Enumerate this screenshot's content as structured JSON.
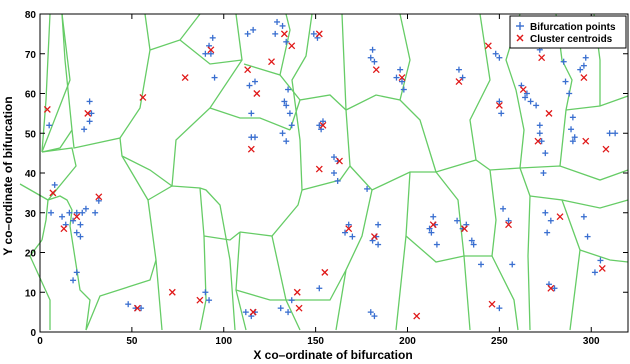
{
  "chart_data": {
    "type": "scatter",
    "title": "",
    "xlabel": "X co–ordinate of bifurcation",
    "ylabel": "Y co–ordinate of bifurcation",
    "xlim": [
      0,
      320
    ],
    "ylim": [
      0,
      80
    ],
    "xticks": [
      0,
      50,
      100,
      150,
      200,
      250,
      300
    ],
    "yticks": [
      0,
      10,
      20,
      30,
      40,
      50,
      60,
      70,
      80
    ],
    "grid": false,
    "legend": {
      "position": "top-right",
      "entries": [
        "Bifurcation points",
        "Cluster centroids"
      ]
    },
    "colors": {
      "points": "#3a6fd0",
      "centroids": "#e01818",
      "voronoi": "#66cc66",
      "axes": "#000000"
    },
    "series": [
      {
        "name": "Bifurcation points",
        "marker": "plus",
        "points": [
          [
            6,
            30
          ],
          [
            8,
            37
          ],
          [
            5,
            52
          ],
          [
            12,
            29
          ],
          [
            14,
            27
          ],
          [
            16,
            30
          ],
          [
            18,
            28
          ],
          [
            20,
            30
          ],
          [
            20,
            25
          ],
          [
            22,
            27
          ],
          [
            23,
            30
          ],
          [
            22,
            24
          ],
          [
            25,
            31
          ],
          [
            27,
            58
          ],
          [
            27,
            53
          ],
          [
            24,
            51
          ],
          [
            28,
            55
          ],
          [
            32,
            33
          ],
          [
            30,
            30
          ],
          [
            20,
            15
          ],
          [
            18,
            13
          ],
          [
            48,
            7
          ],
          [
            55,
            6
          ],
          [
            52,
            6
          ],
          [
            90,
            70
          ],
          [
            92,
            72
          ],
          [
            94,
            74
          ],
          [
            95,
            64
          ],
          [
            93,
            70
          ],
          [
            90,
            10
          ],
          [
            92,
            8
          ],
          [
            113,
            75
          ],
          [
            116,
            76
          ],
          [
            117,
            63
          ],
          [
            114,
            62
          ],
          [
            115,
            55
          ],
          [
            115,
            49
          ],
          [
            117,
            49
          ],
          [
            112,
            5
          ],
          [
            115,
            4
          ],
          [
            117,
            5
          ],
          [
            128,
            75
          ],
          [
            129,
            78
          ],
          [
            132,
            77
          ],
          [
            134,
            73
          ],
          [
            135,
            61
          ],
          [
            133,
            58
          ],
          [
            134,
            57
          ],
          [
            136,
            55
          ],
          [
            137,
            52
          ],
          [
            132,
            50
          ],
          [
            134,
            48
          ],
          [
            131,
            6
          ],
          [
            135,
            5
          ],
          [
            137,
            8
          ],
          [
            149,
            75
          ],
          [
            151,
            74
          ],
          [
            152,
            52
          ],
          [
            154,
            53
          ],
          [
            153,
            51
          ],
          [
            152,
            11
          ],
          [
            160,
            44
          ],
          [
            162,
            43
          ],
          [
            160,
            40
          ],
          [
            162,
            38
          ],
          [
            166,
            25
          ],
          [
            168,
            27
          ],
          [
            170,
            24
          ],
          [
            180,
            69
          ],
          [
            181,
            71
          ],
          [
            182,
            68
          ],
          [
            178,
            36
          ],
          [
            184,
            27
          ],
          [
            183,
            24
          ],
          [
            181,
            23
          ],
          [
            184,
            22
          ],
          [
            180,
            5
          ],
          [
            182,
            4
          ],
          [
            194,
            64
          ],
          [
            196,
            66
          ],
          [
            197,
            63
          ],
          [
            198,
            61
          ],
          [
            212,
            26
          ],
          [
            214,
            29
          ],
          [
            215,
            27
          ],
          [
            213,
            25
          ],
          [
            216,
            22
          ],
          [
            228,
            66
          ],
          [
            230,
            64
          ],
          [
            227,
            28
          ],
          [
            230,
            26
          ],
          [
            232,
            27
          ],
          [
            235,
            23
          ],
          [
            236,
            22
          ],
          [
            240,
            17
          ],
          [
            248,
            70
          ],
          [
            250,
            69
          ],
          [
            250,
            58
          ],
          [
            251,
            55
          ],
          [
            252,
            31
          ],
          [
            255,
            28
          ],
          [
            257,
            17
          ],
          [
            250,
            6
          ],
          [
            262,
            62
          ],
          [
            264,
            59
          ],
          [
            265,
            60
          ],
          [
            267,
            58
          ],
          [
            272,
            71
          ],
          [
            273,
            72
          ],
          [
            270,
            57
          ],
          [
            272,
            52
          ],
          [
            272,
            50
          ],
          [
            273,
            48
          ],
          [
            275,
            45
          ],
          [
            274,
            40
          ],
          [
            275,
            30
          ],
          [
            278,
            28
          ],
          [
            276,
            25
          ],
          [
            277,
            12
          ],
          [
            280,
            11
          ],
          [
            285,
            68
          ],
          [
            286,
            63
          ],
          [
            288,
            60
          ],
          [
            290,
            54
          ],
          [
            289,
            51
          ],
          [
            291,
            49
          ],
          [
            290,
            48
          ],
          [
            294,
            66
          ],
          [
            296,
            67
          ],
          [
            297,
            69
          ],
          [
            296,
            29
          ],
          [
            298,
            24
          ],
          [
            302,
            15
          ],
          [
            305,
            18
          ],
          [
            310,
            50
          ],
          [
            313,
            50
          ]
        ]
      },
      {
        "name": "Cluster centroids",
        "marker": "x",
        "points": [
          [
            4,
            56
          ],
          [
            7,
            35
          ],
          [
            13,
            26
          ],
          [
            20,
            29
          ],
          [
            26,
            55
          ],
          [
            32,
            34
          ],
          [
            53,
            6
          ],
          [
            56,
            59
          ],
          [
            72,
            10
          ],
          [
            79,
            64
          ],
          [
            87,
            8
          ],
          [
            93,
            71
          ],
          [
            113,
            66
          ],
          [
            115,
            46
          ],
          [
            118,
            60
          ],
          [
            116,
            5
          ],
          [
            126,
            68
          ],
          [
            133,
            75
          ],
          [
            137,
            72
          ],
          [
            140,
            10
          ],
          [
            141,
            6
          ],
          [
            152,
            75
          ],
          [
            152,
            41
          ],
          [
            154,
            52
          ],
          [
            155,
            15
          ],
          [
            163,
            43
          ],
          [
            168,
            26
          ],
          [
            182,
            24
          ],
          [
            183,
            66
          ],
          [
            197,
            64
          ],
          [
            205,
            4
          ],
          [
            214,
            27
          ],
          [
            228,
            63
          ],
          [
            231,
            26
          ],
          [
            244,
            72
          ],
          [
            246,
            7
          ],
          [
            250,
            57
          ],
          [
            255,
            27
          ],
          [
            263,
            61
          ],
          [
            271,
            48
          ],
          [
            273,
            69
          ],
          [
            277,
            55
          ],
          [
            278,
            11
          ],
          [
            283,
            29
          ],
          [
            297,
            48
          ],
          [
            296,
            64
          ],
          [
            306,
            16
          ],
          [
            308,
            46
          ]
        ]
      }
    ]
  }
}
